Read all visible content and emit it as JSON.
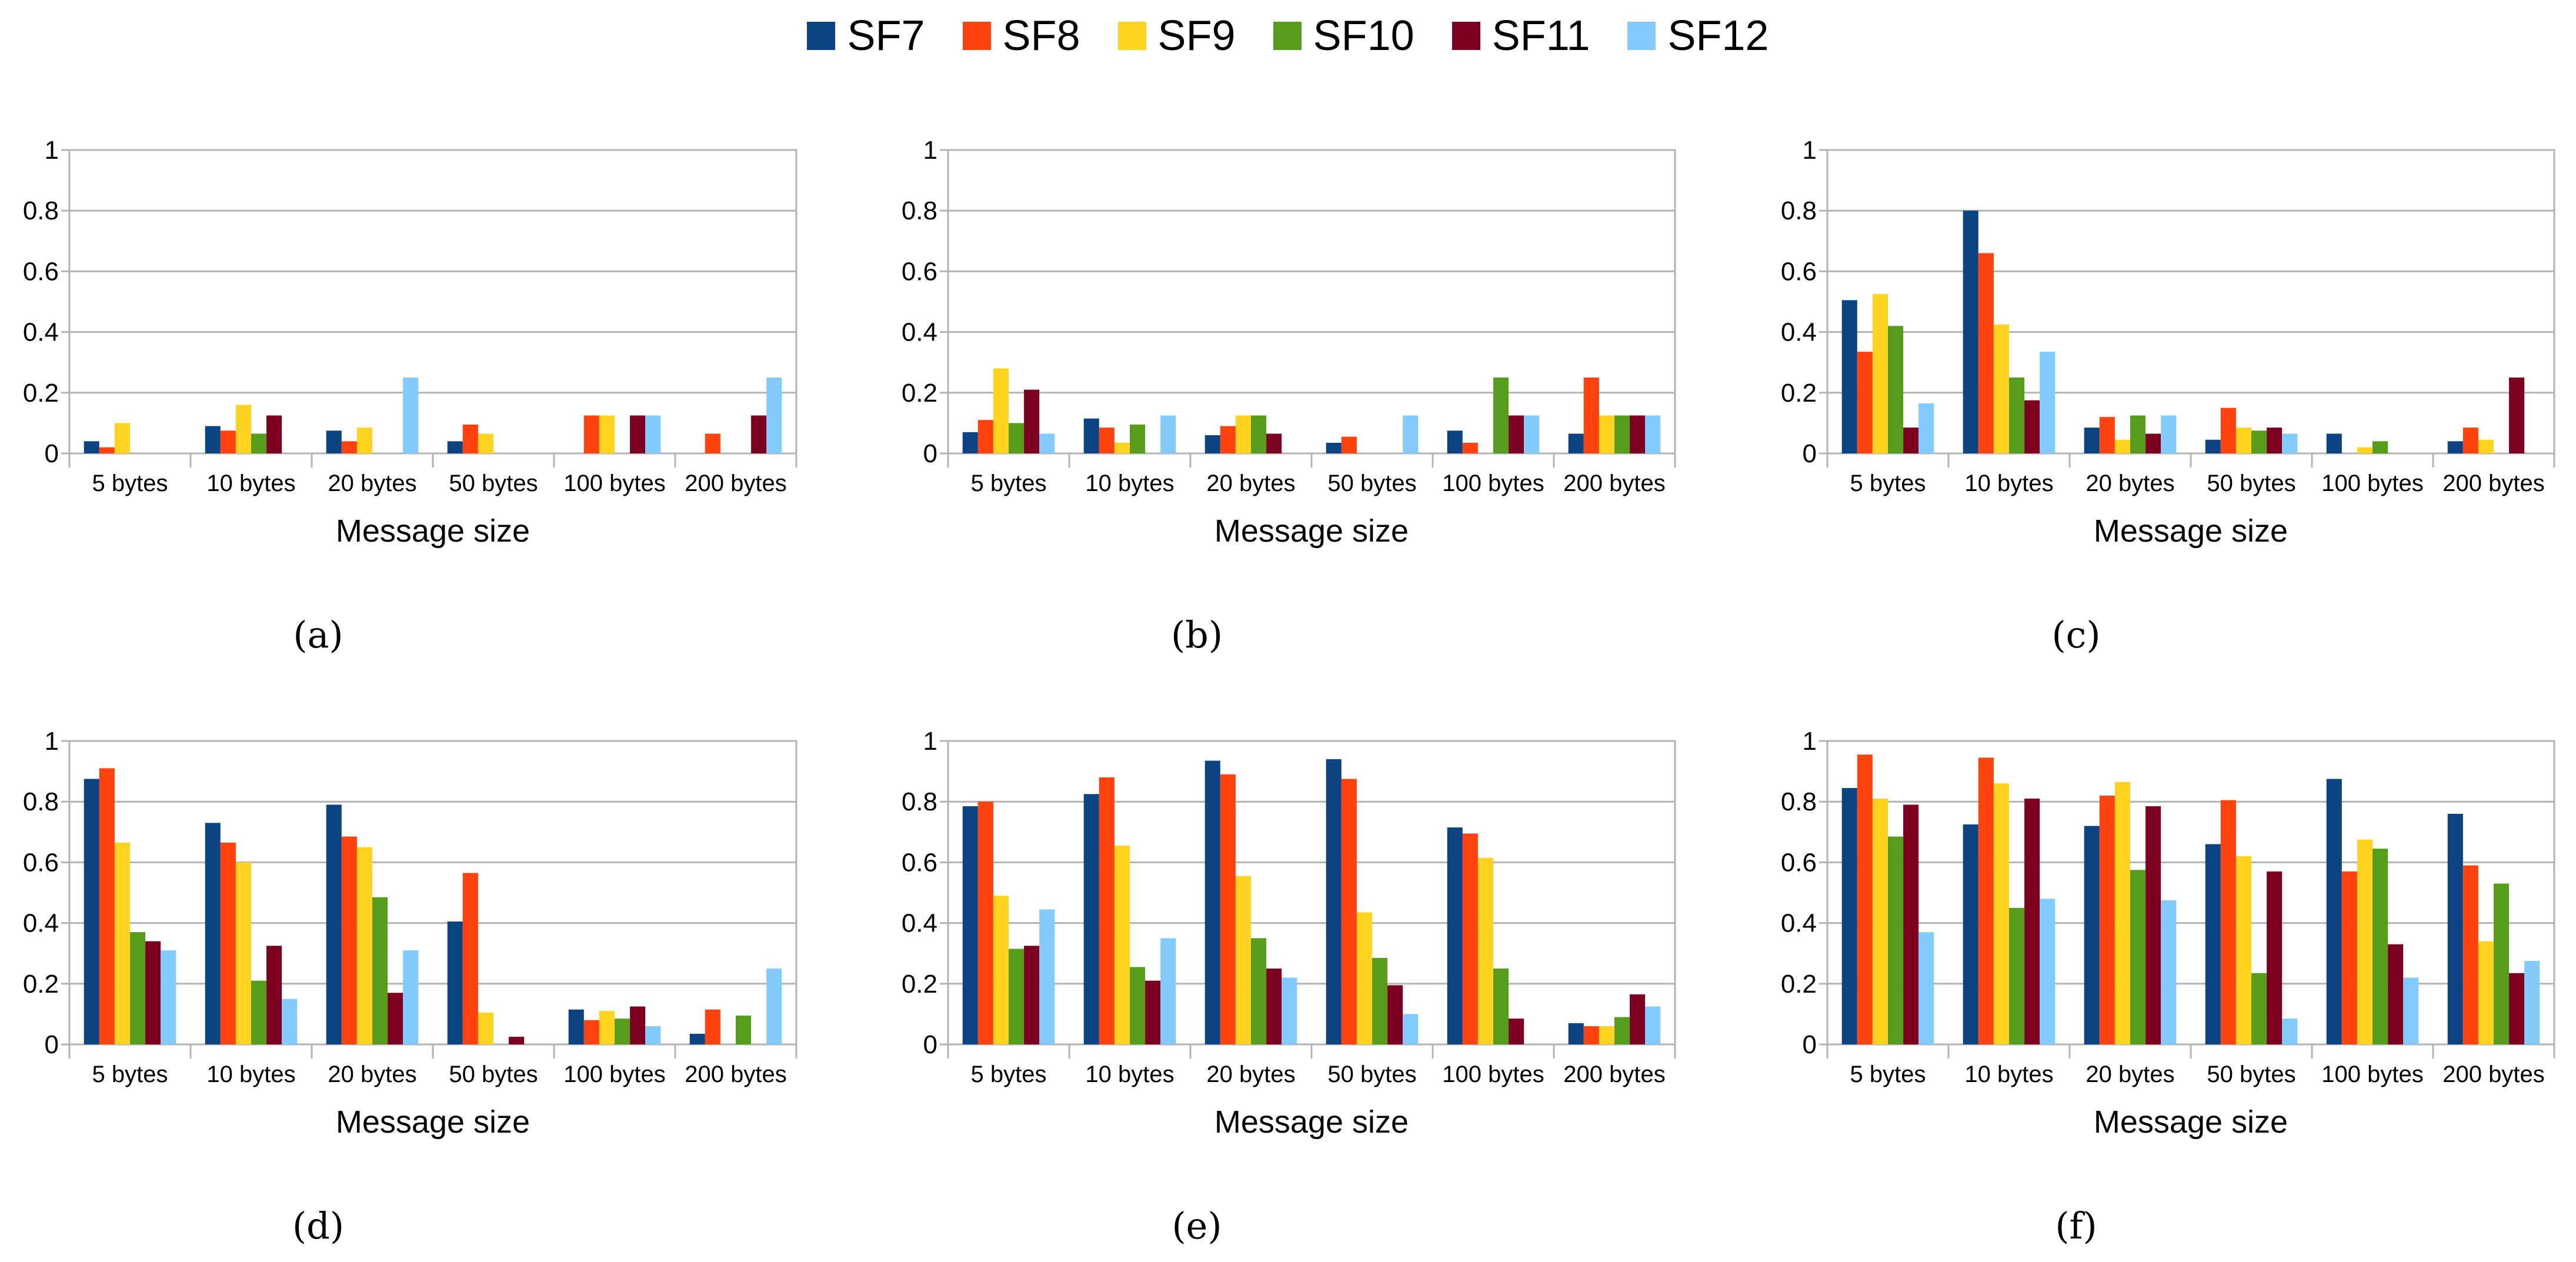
{
  "legend": {
    "series": [
      {
        "name": "SF7",
        "color": "#0b4383"
      },
      {
        "name": "SF8",
        "color": "#ff420e"
      },
      {
        "name": "SF9",
        "color": "#ffd320"
      },
      {
        "name": "SF10",
        "color": "#579d1c"
      },
      {
        "name": "SF11",
        "color": "#7e0021"
      },
      {
        "name": "SF12",
        "color": "#83caff"
      }
    ]
  },
  "chart_data": [
    {
      "type": "bar",
      "panel_label": "(a)",
      "categories": [
        "5 bytes",
        "10 bytes",
        "20 bytes",
        "50 bytes",
        "100 bytes",
        "200 bytes"
      ],
      "xlabel": "Message size",
      "ylabel": "",
      "ylim": [
        0,
        1
      ],
      "yticks": [
        "0",
        "0.2",
        "0.4",
        "0.6",
        "0.8",
        "1"
      ],
      "grid": true,
      "series": [
        {
          "name": "SF7",
          "values": [
            0.04,
            0.09,
            0.075,
            0.04,
            0,
            0
          ]
        },
        {
          "name": "SF8",
          "values": [
            0.02,
            0.075,
            0.04,
            0.095,
            0.125,
            0.065
          ]
        },
        {
          "name": "SF9",
          "values": [
            0.1,
            0.16,
            0.085,
            0.065,
            0.125,
            0
          ]
        },
        {
          "name": "SF10",
          "values": [
            0,
            0.065,
            0,
            0,
            0,
            0
          ]
        },
        {
          "name": "SF11",
          "values": [
            0,
            0.125,
            0,
            0,
            0.125,
            0.125
          ]
        },
        {
          "name": "SF12",
          "values": [
            0,
            0,
            0.25,
            0,
            0.125,
            0.25
          ]
        }
      ]
    },
    {
      "type": "bar",
      "panel_label": "(b)",
      "categories": [
        "5 bytes",
        "10 bytes",
        "20 bytes",
        "50 bytes",
        "100 bytes",
        "200 bytes"
      ],
      "xlabel": "Message size",
      "ylabel": "",
      "ylim": [
        0,
        1
      ],
      "yticks": [
        "0",
        "0.2",
        "0.4",
        "0.6",
        "0.8",
        "1"
      ],
      "grid": true,
      "series": [
        {
          "name": "SF7",
          "values": [
            0.07,
            0.115,
            0.06,
            0.035,
            0.075,
            0.065
          ]
        },
        {
          "name": "SF8",
          "values": [
            0.11,
            0.085,
            0.09,
            0.055,
            0.035,
            0.25
          ]
        },
        {
          "name": "SF9",
          "values": [
            0.28,
            0.035,
            0.125,
            0,
            0,
            0.125
          ]
        },
        {
          "name": "SF10",
          "values": [
            0.1,
            0.095,
            0.125,
            0,
            0.25,
            0.125
          ]
        },
        {
          "name": "SF11",
          "values": [
            0.21,
            0,
            0.065,
            0,
            0.125,
            0.125
          ]
        },
        {
          "name": "SF12",
          "values": [
            0.065,
            0.125,
            0,
            0.125,
            0.125,
            0.125
          ]
        }
      ]
    },
    {
      "type": "bar",
      "panel_label": "(c)",
      "categories": [
        "5 bytes",
        "10 bytes",
        "20 bytes",
        "50 bytes",
        "100 bytes",
        "200 bytes"
      ],
      "xlabel": "Message size",
      "ylabel": "",
      "ylim": [
        0,
        1
      ],
      "yticks": [
        "0",
        "0.2",
        "0.4",
        "0.6",
        "0.8",
        "1"
      ],
      "grid": true,
      "series": [
        {
          "name": "SF7",
          "values": [
            0.505,
            0.8,
            0.085,
            0.045,
            0.065,
            0.04
          ]
        },
        {
          "name": "SF8",
          "values": [
            0.335,
            0.66,
            0.12,
            0.15,
            0,
            0.085
          ]
        },
        {
          "name": "SF9",
          "values": [
            0.525,
            0.425,
            0.045,
            0.085,
            0.02,
            0.045
          ]
        },
        {
          "name": "SF10",
          "values": [
            0.42,
            0.25,
            0.125,
            0.075,
            0.04,
            0
          ]
        },
        {
          "name": "SF11",
          "values": [
            0.085,
            0.175,
            0.065,
            0.085,
            0,
            0.25
          ]
        },
        {
          "name": "SF12",
          "values": [
            0.165,
            0.335,
            0.125,
            0.065,
            0,
            0
          ]
        }
      ]
    },
    {
      "type": "bar",
      "panel_label": "(d)",
      "categories": [
        "5 bytes",
        "10 bytes",
        "20 bytes",
        "50 bytes",
        "100 bytes",
        "200 bytes"
      ],
      "xlabel": "Message size",
      "ylabel": "",
      "ylim": [
        0,
        1
      ],
      "yticks": [
        "0",
        "0.2",
        "0.4",
        "0.6",
        "0.8",
        "1"
      ],
      "grid": true,
      "series": [
        {
          "name": "SF7",
          "values": [
            0.875,
            0.73,
            0.79,
            0.405,
            0.115,
            0.035
          ]
        },
        {
          "name": "SF8",
          "values": [
            0.91,
            0.665,
            0.685,
            0.565,
            0.08,
            0.115
          ]
        },
        {
          "name": "SF9",
          "values": [
            0.665,
            0.6,
            0.65,
            0.105,
            0.11,
            0
          ]
        },
        {
          "name": "SF10",
          "values": [
            0.37,
            0.21,
            0.485,
            0,
            0.085,
            0.095
          ]
        },
        {
          "name": "SF11",
          "values": [
            0.34,
            0.325,
            0.17,
            0.025,
            0.125,
            0
          ]
        },
        {
          "name": "SF12",
          "values": [
            0.31,
            0.15,
            0.31,
            0,
            0.06,
            0.25
          ]
        }
      ]
    },
    {
      "type": "bar",
      "panel_label": "(e)",
      "categories": [
        "5 bytes",
        "10 bytes",
        "20 bytes",
        "50 bytes",
        "100 bytes",
        "200 bytes"
      ],
      "xlabel": "Message size",
      "ylabel": "",
      "ylim": [
        0,
        1
      ],
      "yticks": [
        "0",
        "0.2",
        "0.4",
        "0.6",
        "0.8",
        "1"
      ],
      "grid": true,
      "series": [
        {
          "name": "SF7",
          "values": [
            0.785,
            0.825,
            0.935,
            0.94,
            0.715,
            0.07
          ]
        },
        {
          "name": "SF8",
          "values": [
            0.8,
            0.88,
            0.89,
            0.875,
            0.695,
            0.06
          ]
        },
        {
          "name": "SF9",
          "values": [
            0.49,
            0.655,
            0.555,
            0.435,
            0.615,
            0.06
          ]
        },
        {
          "name": "SF10",
          "values": [
            0.315,
            0.255,
            0.35,
            0.285,
            0.25,
            0.09
          ]
        },
        {
          "name": "SF11",
          "values": [
            0.325,
            0.21,
            0.25,
            0.195,
            0.085,
            0.165
          ]
        },
        {
          "name": "SF12",
          "values": [
            0.445,
            0.35,
            0.22,
            0.1,
            0,
            0.125
          ]
        }
      ]
    },
    {
      "type": "bar",
      "panel_label": "(f)",
      "categories": [
        "5 bytes",
        "10 bytes",
        "20 bytes",
        "50 bytes",
        "100 bytes",
        "200 bytes"
      ],
      "xlabel": "Message size",
      "ylabel": "",
      "ylim": [
        0,
        1
      ],
      "yticks": [
        "0",
        "0.2",
        "0.4",
        "0.6",
        "0.8",
        "1"
      ],
      "grid": true,
      "series": [
        {
          "name": "SF7",
          "values": [
            0.845,
            0.725,
            0.72,
            0.66,
            0.875,
            0.76
          ]
        },
        {
          "name": "SF8",
          "values": [
            0.955,
            0.945,
            0.82,
            0.805,
            0.57,
            0.59
          ]
        },
        {
          "name": "SF9",
          "values": [
            0.81,
            0.86,
            0.865,
            0.62,
            0.675,
            0.34
          ]
        },
        {
          "name": "SF10",
          "values": [
            0.685,
            0.45,
            0.575,
            0.235,
            0.645,
            0.53
          ]
        },
        {
          "name": "SF11",
          "values": [
            0.79,
            0.81,
            0.785,
            0.57,
            0.33,
            0.235
          ]
        },
        {
          "name": "SF12",
          "values": [
            0.37,
            0.48,
            0.475,
            0.085,
            0.22,
            0.275
          ]
        }
      ]
    }
  ]
}
